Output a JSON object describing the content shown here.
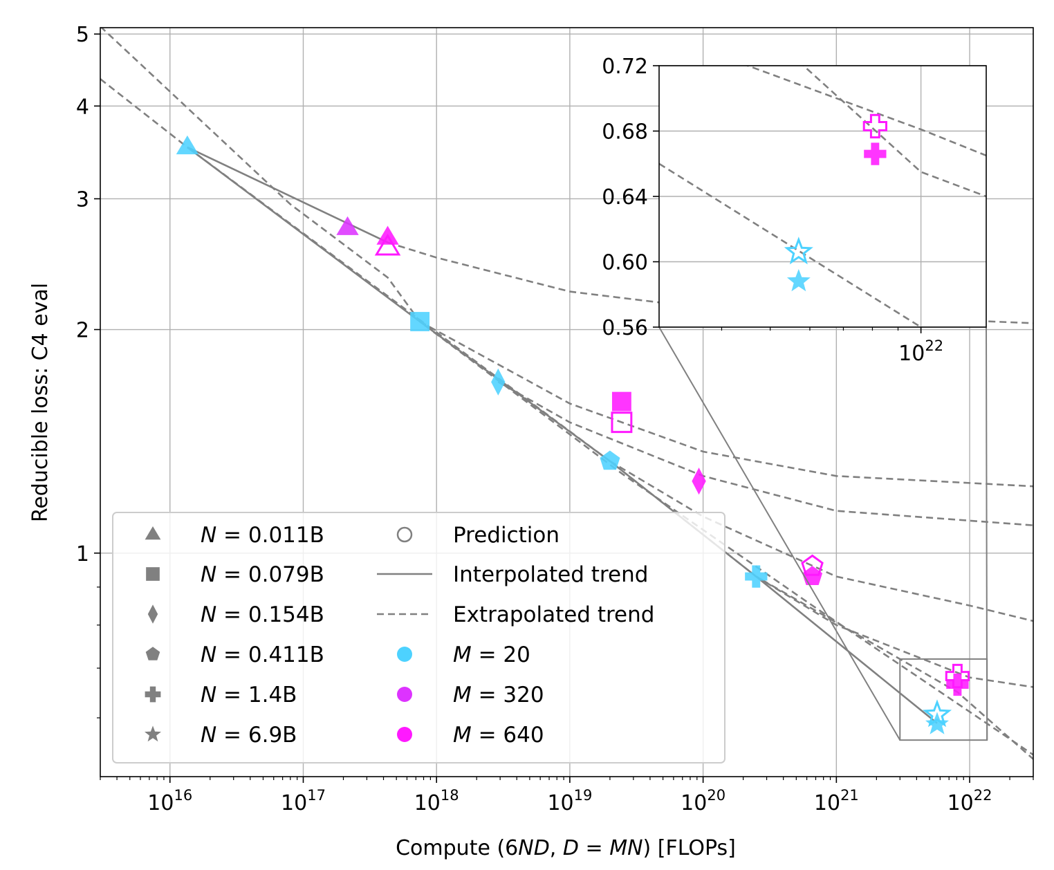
{
  "chart_data": [
    {
      "type": "scatter",
      "title": "",
      "xlabel": "Compute (6ND, D = MN) [FLOPs]",
      "ylabel": "Reducible loss: C4 eval",
      "x_scale": "log",
      "y_scale": "log",
      "xlim": [
        3000000000000000.0,
        3e+22
      ],
      "ylim": [
        0.5,
        5.1
      ],
      "x_ticks": [
        {
          "value": 1e+16,
          "mantissa": "10",
          "exp": "16"
        },
        {
          "value": 1e+17,
          "mantissa": "10",
          "exp": "17"
        },
        {
          "value": 1e+18,
          "mantissa": "10",
          "exp": "18"
        },
        {
          "value": 1e+19,
          "mantissa": "10",
          "exp": "19"
        },
        {
          "value": 1e+20,
          "mantissa": "10",
          "exp": "20"
        },
        {
          "value": 1e+21,
          "mantissa": "10",
          "exp": "21"
        },
        {
          "value": 1e+22,
          "mantissa": "10",
          "exp": "22"
        }
      ],
      "y_ticks": [
        {
          "value": 1,
          "label": "1"
        },
        {
          "value": 2,
          "label": "2"
        },
        {
          "value": 3,
          "label": "3"
        },
        {
          "value": 4,
          "label": "4"
        },
        {
          "value": 5,
          "label": "5"
        }
      ],
      "grid": true,
      "colors": {
        "M=20": "#4dd2ff",
        "M=320": "#dd33ff",
        "M=640": "#ff19ff",
        "trend": "#808080"
      },
      "points": [
        {
          "x": 1.35e+16,
          "y": 3.52,
          "shape": "triangle",
          "M": 20,
          "fill": "filled"
        },
        {
          "x": 2.15e+17,
          "y": 2.74,
          "shape": "triangle",
          "M": 320,
          "fill": "filled"
        },
        {
          "x": 4.3e+17,
          "y": 2.66,
          "shape": "triangle",
          "M": 640,
          "fill": "filled"
        },
        {
          "x": 4.3e+17,
          "y": 2.58,
          "shape": "triangle",
          "M": 640,
          "fill": "open"
        },
        {
          "x": 7.5e+17,
          "y": 2.05,
          "shape": "square",
          "M": 20,
          "fill": "filled"
        },
        {
          "x": 2.45e+19,
          "y": 1.6,
          "shape": "square",
          "M": 640,
          "fill": "filled"
        },
        {
          "x": 2.45e+19,
          "y": 1.5,
          "shape": "square",
          "M": 640,
          "fill": "open"
        },
        {
          "x": 2.9e+18,
          "y": 1.7,
          "shape": "diamond",
          "M": 20,
          "fill": "filled"
        },
        {
          "x": 9.3e+19,
          "y": 1.25,
          "shape": "diamond",
          "M": 640,
          "fill": "filled"
        },
        {
          "x": 2e+19,
          "y": 1.33,
          "shape": "pentagon",
          "M": 20,
          "fill": "filled"
        },
        {
          "x": 6.6e+20,
          "y": 0.93,
          "shape": "pentagon",
          "M": 640,
          "fill": "filled"
        },
        {
          "x": 6.6e+20,
          "y": 0.96,
          "shape": "pentagon",
          "M": 640,
          "fill": "open"
        },
        {
          "x": 2.5e+20,
          "y": 0.93,
          "shape": "plus",
          "M": 20,
          "fill": "filled"
        },
        {
          "x": 8.1e+21,
          "y": 0.665,
          "shape": "plus",
          "M": 640,
          "fill": "filled"
        },
        {
          "x": 8.1e+21,
          "y": 0.683,
          "shape": "plus",
          "M": 640,
          "fill": "open"
        },
        {
          "x": 5.7e+21,
          "y": 0.588,
          "shape": "star",
          "M": 20,
          "fill": "filled"
        },
        {
          "x": 5.7e+21,
          "y": 0.606,
          "shape": "star",
          "M": 20,
          "fill": "open"
        }
      ],
      "trends": [
        {
          "style": "solid",
          "points": [
            [
              1.35e+16,
              3.52
            ],
            [
              7.5e+17,
              2.05
            ],
            [
              2e+19,
              1.33
            ],
            [
              2.5e+20,
              0.93
            ],
            [
              5.7e+21,
              0.59
            ]
          ]
        },
        {
          "style": "solid",
          "points": [
            [
              1.35e+16,
              3.52
            ],
            [
              4.3e+17,
              2.62
            ]
          ]
        },
        {
          "style": "dashed",
          "points": [
            [
              3000000000000000.0,
              5.12
            ],
            [
              8e+16,
              2.95
            ],
            [
              4.3e+17,
              2.35
            ],
            [
              7.5e+17,
              2.05
            ],
            [
              2.45e+19,
              1.28
            ],
            [
              6.6e+20,
              0.85
            ],
            [
              3e+22,
              0.535
            ]
          ]
        },
        {
          "style": "dashed",
          "points": [
            [
              3000000000000000.0,
              4.35
            ],
            [
              1.35e+16,
              3.52
            ],
            [
              2e+19,
              1.33
            ],
            [
              2.5e+20,
              0.93
            ],
            [
              8.1e+21,
              0.65
            ],
            [
              3e+22,
              0.528
            ]
          ]
        },
        {
          "style": "dashed",
          "points": [
            [
              4.3e+17,
              2.62
            ],
            [
              1e+18,
              2.5
            ],
            [
              1e+19,
              2.25
            ],
            [
              1e+20,
              2.14
            ],
            [
              1e+21,
              2.09
            ],
            [
              3e+22,
              2.04
            ]
          ]
        },
        {
          "style": "dashed",
          "points": [
            [
              7.5e+17,
              2.05
            ],
            [
              1e+19,
              1.59
            ],
            [
              1e+20,
              1.37
            ],
            [
              1e+21,
              1.27
            ],
            [
              3e+22,
              1.23
            ]
          ]
        },
        {
          "style": "dashed",
          "points": [
            [
              2.9e+18,
              1.7
            ],
            [
              1e+19,
              1.5
            ],
            [
              1e+20,
              1.27
            ],
            [
              1e+21,
              1.14
            ],
            [
              3e+22,
              1.09
            ]
          ]
        },
        {
          "style": "dashed",
          "points": [
            [
              2e+19,
              1.33
            ],
            [
              1e+20,
              1.12
            ],
            [
              1e+21,
              0.93
            ],
            [
              1e+22,
              0.85
            ],
            [
              3e+22,
              0.81
            ]
          ]
        },
        {
          "style": "dashed",
          "points": [
            [
              2.5e+20,
              0.93
            ],
            [
              1e+21,
              0.8
            ],
            [
              1e+22,
              0.68
            ],
            [
              3e+22,
              0.66
            ]
          ]
        }
      ],
      "zoom_box": {
        "xlim": [
          3e+21,
          1.35e+22
        ],
        "ylim": [
          0.56,
          0.72
        ]
      },
      "legend": {
        "placement": "lower-left",
        "shapes": [
          {
            "shape": "triangle",
            "prefix": "N",
            "value": " = 0.011B"
          },
          {
            "shape": "square",
            "prefix": "N",
            "value": " = 0.079B"
          },
          {
            "shape": "diamond",
            "prefix": "N",
            "value": " = 0.154B"
          },
          {
            "shape": "pentagon",
            "prefix": "N",
            "value": " = 0.411B"
          },
          {
            "shape": "plus",
            "prefix": "N",
            "value": " = 1.4B"
          },
          {
            "shape": "star",
            "prefix": "N",
            "value": " = 6.9B"
          }
        ],
        "styles": [
          {
            "kind": "open-circle",
            "label": "Prediction"
          },
          {
            "kind": "solid-line",
            "label": "Interpolated trend"
          },
          {
            "kind": "dashed-line",
            "label": "Extrapolated trend"
          },
          {
            "kind": "dot",
            "color": "#4dd2ff",
            "prefix": "M",
            "value": " = 20"
          },
          {
            "kind": "dot",
            "color": "#dd33ff",
            "prefix": "M",
            "value": " = 320"
          },
          {
            "kind": "dot",
            "color": "#ff19ff",
            "prefix": "M",
            "value": " = 640"
          }
        ]
      }
    },
    {
      "type": "scatter",
      "role": "inset",
      "x_scale": "log",
      "xlim": [
        3e+21,
        1.35e+22
      ],
      "ylim": [
        0.56,
        0.72
      ],
      "y_ticks": [
        {
          "value": 0.56,
          "label": "0.56"
        },
        {
          "value": 0.6,
          "label": "0.60"
        },
        {
          "value": 0.64,
          "label": "0.64"
        },
        {
          "value": 0.68,
          "label": "0.68"
        },
        {
          "value": 0.72,
          "label": "0.72"
        }
      ],
      "x_ticks": [
        {
          "value": 1e+22,
          "mantissa": "10",
          "exp": "22"
        }
      ],
      "grid": true,
      "points": [
        {
          "x": 8.1e+21,
          "y": 0.683,
          "shape": "plus",
          "M": 640,
          "fill": "open"
        },
        {
          "x": 8.1e+21,
          "y": 0.666,
          "shape": "plus",
          "M": 640,
          "fill": "filled"
        },
        {
          "x": 5.7e+21,
          "y": 0.606,
          "shape": "star",
          "M": 20,
          "fill": "open"
        },
        {
          "x": 5.7e+21,
          "y": 0.588,
          "shape": "star",
          "M": 20,
          "fill": "filled"
        }
      ],
      "trends": [
        {
          "style": "dashed",
          "points": [
            [
              3e+21,
              0.74
            ],
            [
              1e+22,
              0.681
            ],
            [
              1.35e+22,
              0.665
            ]
          ]
        },
        {
          "style": "dashed",
          "points": [
            [
              3e+21,
              0.8
            ],
            [
              1e+22,
              0.655
            ],
            [
              1.35e+22,
              0.64
            ]
          ]
        },
        {
          "style": "dashed",
          "points": [
            [
              3e+21,
              0.66
            ],
            [
              1e+22,
              0.56
            ],
            [
              1.35e+22,
              0.545
            ]
          ]
        }
      ]
    }
  ]
}
